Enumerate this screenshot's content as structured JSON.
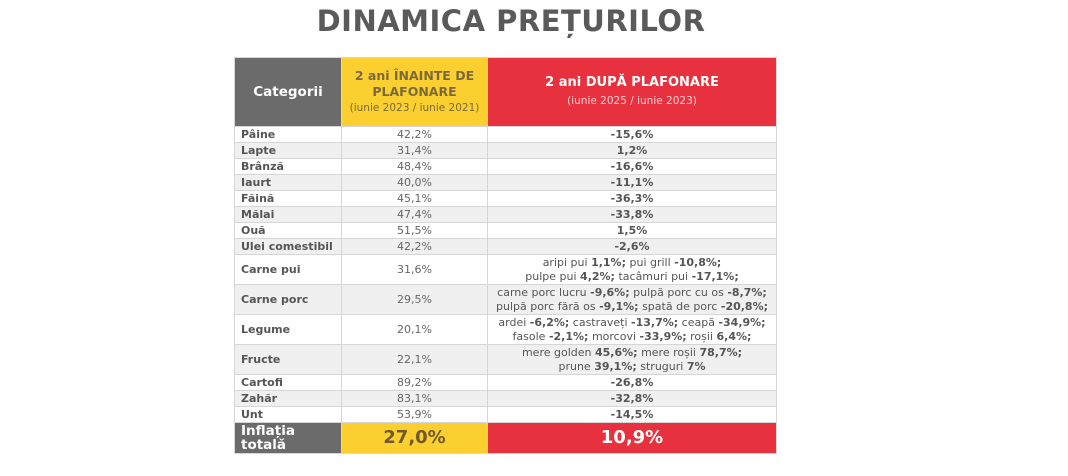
{
  "title": "DINAMICA PREȚURILOR",
  "header": {
    "col_category": "Categorii",
    "col_before": "2 ani ÎNAINTE DE PLAFONARE",
    "col_before_sub": "(iunie 2023 / iunie 2021)",
    "col_after": "2 ani DUPĂ PLAFONARE",
    "col_after_sub": "(iunie 2025 / iunie 2023)"
  },
  "colors": {
    "header_gray": "#6b6b6b",
    "header_yellow": "#fbcf2f",
    "header_red": "#e8313f"
  },
  "rows": [
    {
      "category": "Pâine",
      "before": "42,2%",
      "after": "-15,6%"
    },
    {
      "category": "Lapte",
      "before": "31,4%",
      "after": "1,2%"
    },
    {
      "category": "Brânză",
      "before": "48,4%",
      "after": "-16,6%"
    },
    {
      "category": "Iaurt",
      "before": "40,0%",
      "after": "-11,1%"
    },
    {
      "category": "Făină",
      "before": "45,1%",
      "after": "-36,3%"
    },
    {
      "category": "Mălai",
      "before": "47,4%",
      "after": "-33,8%"
    },
    {
      "category": "Ouă",
      "before": "51,5%",
      "after": "1,5%"
    },
    {
      "category": "Ulei comestibil",
      "before": "42,2%",
      "after": "-2,6%"
    },
    {
      "category": "Carne pui",
      "before": "31,6%",
      "after_lines": [
        [
          {
            "label": "aripi pui",
            "value": "1,1%;"
          },
          {
            "label": "pui grill",
            "value": "-10,8%;"
          }
        ],
        [
          {
            "label": "pulpe pui",
            "value": "4,2%;"
          },
          {
            "label": "tacâmuri pui",
            "value": "-17,1%;"
          }
        ]
      ]
    },
    {
      "category": "Carne porc",
      "before": "29,5%",
      "after_lines": [
        [
          {
            "label": "carne porc lucru",
            "value": "-9,6%;"
          },
          {
            "label": "pulpă porc cu os",
            "value": "-8,7%;"
          }
        ],
        [
          {
            "label": "pulpă porc fără os",
            "value": "-9,1%;"
          },
          {
            "label": "spată de porc",
            "value": "-20,8%;"
          }
        ]
      ]
    },
    {
      "category": "Legume",
      "before": "20,1%",
      "after_lines": [
        [
          {
            "label": "ardei",
            "value": "-6,2%;"
          },
          {
            "label": "castraveți",
            "value": "-13,7%;"
          },
          {
            "label": "ceapă",
            "value": "-34,9%;"
          }
        ],
        [
          {
            "label": "fasole",
            "value": "-2,1%;"
          },
          {
            "label": "morcovi",
            "value": "-33,9%;"
          },
          {
            "label": "roșii",
            "value": "6,4%;"
          }
        ]
      ]
    },
    {
      "category": "Fructe",
      "before": "22,1%",
      "after_lines": [
        [
          {
            "label": "mere golden",
            "value": "45,6%;"
          },
          {
            "label": "mere roșii",
            "value": "78,7%;"
          }
        ],
        [
          {
            "label": "prune",
            "value": "39,1%;"
          },
          {
            "label": "struguri",
            "value": "7%"
          }
        ]
      ]
    },
    {
      "category": "Cartofi",
      "before": "89,2%",
      "after": "-26,8%"
    },
    {
      "category": "Zahăr",
      "before": "83,1%",
      "after": "-32,8%"
    },
    {
      "category": "Unt",
      "before": "53,9%",
      "after": "-14,5%"
    }
  ],
  "total": {
    "label": "Inflația totală",
    "before": "27,0%",
    "after": "10,9%"
  }
}
